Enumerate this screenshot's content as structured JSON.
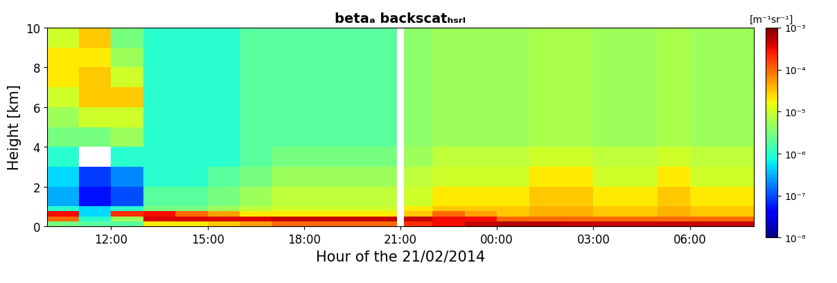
{
  "chart_data": {
    "type": "heatmap",
    "title": "betaₐ backscatₕₛᵣₗ",
    "x_label": "Hour of the 21/02/2014",
    "y_label": "Height [km]",
    "colorbar_label": "[m⁻¹sr⁻¹]",
    "xlim": [
      10,
      32
    ],
    "xticks": [
      {
        "value": 12,
        "label": "12:00"
      },
      {
        "value": 15,
        "label": "15:00"
      },
      {
        "value": 18,
        "label": "18:00"
      },
      {
        "value": 21,
        "label": "21:00"
      },
      {
        "value": 24,
        "label": "00:00"
      },
      {
        "value": 27,
        "label": "03:00"
      },
      {
        "value": 30,
        "label": "06:00"
      }
    ],
    "ylim": [
      0,
      10
    ],
    "yticks": [
      0,
      2,
      4,
      6,
      8,
      10
    ],
    "x_edges": [
      10,
      11,
      12,
      13,
      14,
      15,
      16,
      17,
      18,
      19,
      20,
      20.9,
      21.1,
      22,
      23,
      24,
      25,
      26,
      27,
      28,
      29,
      30,
      31,
      32
    ],
    "y_edges": [
      0,
      0.25,
      0.5,
      0.75,
      1,
      2,
      3,
      4,
      5,
      6,
      7,
      8,
      9,
      10
    ],
    "cells": [
      [
        3e-06,
        2e-06,
        2e-06,
        2e-05,
        2e-05,
        3e-05,
        5e-05,
        0.0001,
        0.0001,
        0.0001,
        0.0001,
        null,
        0.0002,
        0.0003,
        0.0005,
        0.0006,
        0.0006,
        0.0005,
        0.0005,
        0.0005,
        0.0005,
        0.0005,
        0.0005
      ],
      [
        0.0001,
        1e-06,
        5e-06,
        0.0004,
        0.0004,
        0.0004,
        0.0004,
        0.0005,
        0.0005,
        0.0005,
        0.0005,
        null,
        0.0005,
        0.0003,
        0.0003,
        0.0001,
        0.0001,
        0.0001,
        0.0001,
        0.0001,
        0.0001,
        0.0001,
        0.0001
      ],
      [
        0.0003,
        5e-07,
        0.0002,
        0.0003,
        0.0001,
        5e-05,
        2e-05,
        2e-05,
        2e-05,
        2e-05,
        2e-05,
        null,
        3e-05,
        0.0001,
        5e-05,
        3e-05,
        4e-05,
        4e-05,
        3e-05,
        3e-05,
        4e-05,
        3e-05,
        3e-05
      ],
      [
        1e-06,
        5e-07,
        1e-06,
        3e-06,
        3e-06,
        5e-06,
        8e-06,
        1e-05,
        1e-05,
        1e-05,
        1e-05,
        null,
        2e-05,
        3e-05,
        3e-05,
        3e-05,
        4e-05,
        4e-05,
        3e-05,
        3e-05,
        4e-05,
        3e-05,
        3e-05
      ],
      [
        3e-07,
        5e-08,
        1e-07,
        2e-06,
        2e-06,
        3e-06,
        5e-06,
        8e-06,
        8e-06,
        8e-06,
        8e-06,
        null,
        1e-05,
        2e-05,
        2e-05,
        2e-05,
        3e-05,
        3e-05,
        2e-05,
        2e-05,
        3e-05,
        2e-05,
        2e-05
      ],
      [
        5e-07,
        8e-08,
        2e-07,
        1e-06,
        1e-06,
        2e-06,
        3e-06,
        5e-06,
        5e-06,
        5e-06,
        5e-06,
        null,
        8e-06,
        1e-05,
        1e-05,
        1e-05,
        2e-05,
        2e-05,
        1e-05,
        1e-05,
        2e-05,
        1e-05,
        1e-05
      ],
      [
        1e-06,
        null,
        1e-06,
        1e-06,
        1e-06,
        1e-06,
        2e-06,
        3e-06,
        3e-06,
        3e-06,
        3e-06,
        null,
        5e-06,
        8e-06,
        8e-06,
        8e-06,
        1e-05,
        1e-05,
        8e-06,
        8e-06,
        1e-05,
        8e-06,
        8e-06
      ],
      [
        3e-06,
        3e-06,
        5e-06,
        1e-06,
        1e-06,
        1e-06,
        2e-06,
        2e-06,
        2e-06,
        2e-06,
        2e-06,
        null,
        4e-06,
        5e-06,
        5e-06,
        5e-06,
        6e-06,
        6e-06,
        5e-06,
        5e-06,
        6e-06,
        5e-06,
        5e-06
      ],
      [
        5e-06,
        1e-05,
        1e-05,
        1e-06,
        1e-06,
        1e-06,
        2e-06,
        2e-06,
        2e-06,
        2e-06,
        2e-06,
        null,
        4e-06,
        5e-06,
        5e-06,
        5e-06,
        6e-06,
        6e-06,
        5e-06,
        5e-06,
        6e-06,
        5e-06,
        5e-06
      ],
      [
        1e-05,
        3e-05,
        3e-05,
        1e-06,
        1e-06,
        1e-06,
        2e-06,
        2e-06,
        2e-06,
        2e-06,
        2e-06,
        null,
        4e-06,
        5e-06,
        5e-06,
        5e-06,
        6e-06,
        6e-06,
        5e-06,
        5e-06,
        6e-06,
        5e-06,
        5e-06
      ],
      [
        2e-05,
        3e-05,
        1e-05,
        1e-06,
        1e-06,
        1e-06,
        2e-06,
        2e-06,
        2e-06,
        2e-06,
        2e-06,
        null,
        4e-06,
        5e-06,
        5e-06,
        5e-06,
        6e-06,
        6e-06,
        5e-06,
        5e-06,
        6e-06,
        5e-06,
        5e-06
      ],
      [
        2e-05,
        2e-05,
        5e-06,
        1e-06,
        1e-06,
        1e-06,
        2e-06,
        2e-06,
        2e-06,
        2e-06,
        2e-06,
        null,
        4e-06,
        5e-06,
        5e-06,
        5e-06,
        6e-06,
        6e-06,
        5e-06,
        5e-06,
        6e-06,
        5e-06,
        5e-06
      ],
      [
        1e-05,
        3e-05,
        3e-06,
        1e-06,
        1e-06,
        1e-06,
        2e-06,
        2e-06,
        2e-06,
        2e-06,
        2e-06,
        null,
        4e-06,
        5e-06,
        5e-06,
        5e-06,
        6e-06,
        6e-06,
        5e-06,
        5e-06,
        6e-06,
        5e-06,
        5e-06
      ]
    ],
    "clim": [
      1e-08,
      0.001
    ],
    "cticks": [
      {
        "value": 1e-08,
        "label": "10⁻⁸"
      },
      {
        "value": 1e-07,
        "label": "10⁻⁷"
      },
      {
        "value": 1e-06,
        "label": "10⁻⁶"
      },
      {
        "value": 1e-05,
        "label": "10⁻⁵"
      },
      {
        "value": 0.0001,
        "label": "10⁻⁴"
      },
      {
        "value": 0.001,
        "label": "10⁻³"
      }
    ]
  }
}
